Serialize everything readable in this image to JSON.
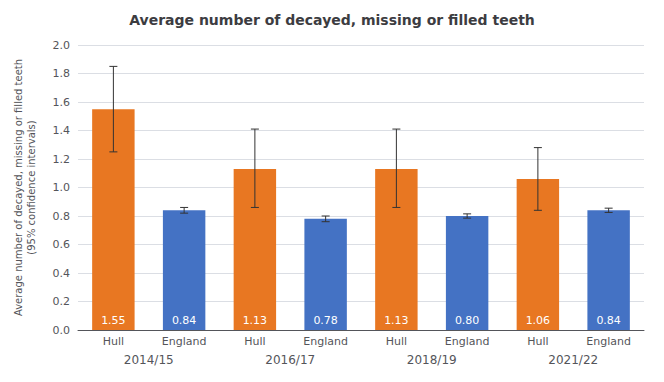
{
  "chart_data": {
    "type": "bar",
    "title": "Average number of decayed, missing or filled teeth",
    "ylabel": "Average number of decayed, missing or filled teeth\n(95% confidence intervals)",
    "categories": [
      "2014/15",
      "2016/17",
      "2018/19",
      "2021/22"
    ],
    "series": [
      {
        "name": "Hull",
        "color": "#E87722",
        "values": [
          1.55,
          1.13,
          1.13,
          1.06
        ],
        "value_labels": [
          "1.55",
          "1.13",
          "1.13",
          "1.06"
        ],
        "errors_lo": [
          0.3,
          0.27,
          0.27,
          0.22
        ],
        "errors_hi": [
          0.3,
          0.28,
          0.28,
          0.22
        ]
      },
      {
        "name": "England",
        "color": "#4472C4",
        "values": [
          0.84,
          0.78,
          0.8,
          0.84
        ],
        "value_labels": [
          "0.84",
          "0.78",
          "0.80",
          "0.84"
        ],
        "errors_lo": [
          0.02,
          0.02,
          0.015,
          0.015
        ],
        "errors_hi": [
          0.02,
          0.02,
          0.015,
          0.015
        ]
      }
    ],
    "ylim": [
      0,
      2.0
    ],
    "yticks": [
      {
        "value": 0,
        "label": "0.0"
      },
      0.2,
      0.4,
      0.6,
      0.8,
      {
        "value": 1,
        "label": "1.0"
      },
      1.2,
      1.4,
      1.6,
      1.8,
      {
        "value": 2,
        "label": "2.0"
      }
    ],
    "grid": true,
    "data_labels": true
  }
}
